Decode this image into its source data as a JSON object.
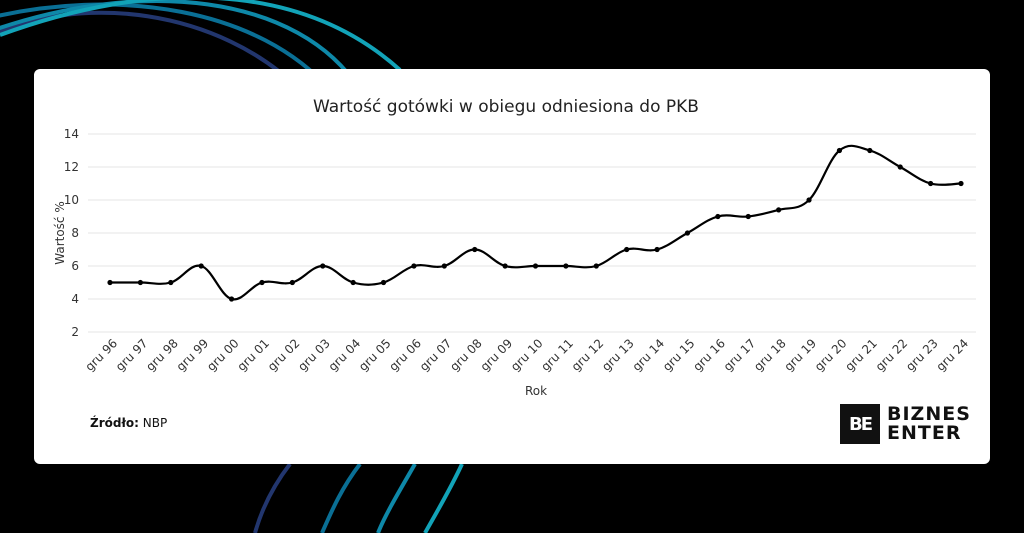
{
  "page": {
    "background": "#000000",
    "arc_colors": [
      "#22366e",
      "#0a6f95",
      "#0e88a8",
      "#12a3b8"
    ]
  },
  "chart": {
    "title": "Wartość gotówki w obiegu odniesiona do PKB",
    "ylabel": "Wartość %",
    "xlabel": "Rok",
    "yticks": [
      "14",
      "12",
      "10",
      "8",
      "6",
      "4",
      "2"
    ]
  },
  "source": {
    "label": "Źródło:",
    "value": "NBP"
  },
  "logo": {
    "mark": "BE",
    "line1": "BIZNES",
    "line2": "ENTER"
  },
  "chart_data": {
    "type": "line",
    "title": "Wartość gotówki w obiegu odniesiona do PKB",
    "xlabel": "Rok",
    "ylabel": "Wartość %",
    "ylim": [
      2,
      14
    ],
    "yticks": [
      2,
      4,
      6,
      8,
      10,
      12,
      14
    ],
    "grid": true,
    "legend": "none",
    "categories": [
      "gru 96",
      "gru 97",
      "gru 98",
      "gru 99",
      "gru 00",
      "gru 01",
      "gru 02",
      "gru 03",
      "gru 04",
      "gru 05",
      "gru 06",
      "gru 07",
      "gru 08",
      "gru 09",
      "gru 10",
      "gru 11",
      "gru 12",
      "gru 13",
      "gru 14",
      "gru 15",
      "gru 16",
      "gru 17",
      "gru 18",
      "gru 19",
      "gru 20",
      "gru 21",
      "gru 22",
      "gru 23",
      "gru 24"
    ],
    "series": [
      {
        "name": "Wartość %",
        "values": [
          5,
          5,
          5,
          6,
          4,
          5,
          5,
          6,
          5,
          5,
          6,
          6,
          7,
          6,
          6,
          6,
          6,
          7,
          7,
          8,
          9,
          9,
          9.4,
          10,
          13,
          13,
          12,
          11,
          11
        ]
      }
    ]
  }
}
